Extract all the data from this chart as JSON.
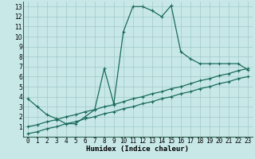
{
  "xlabel": "Humidex (Indice chaleur)",
  "background_color": "#c8e8e8",
  "line_color": "#1a6b5a",
  "xlim": [
    -0.5,
    23.5
  ],
  "ylim": [
    0,
    13.5
  ],
  "xticks": [
    0,
    1,
    2,
    3,
    4,
    5,
    6,
    7,
    8,
    9,
    10,
    11,
    12,
    13,
    14,
    15,
    16,
    17,
    18,
    19,
    20,
    21,
    22,
    23
  ],
  "yticks": [
    1,
    2,
    3,
    4,
    5,
    6,
    7,
    8,
    9,
    10,
    11,
    12,
    13
  ],
  "line1_x": [
    0,
    1,
    2,
    3,
    4,
    5,
    6,
    7,
    8,
    9,
    10,
    11,
    12,
    13,
    14,
    15,
    16,
    17,
    18,
    19,
    20,
    21,
    22,
    23
  ],
  "line1_y": [
    3.8,
    3.0,
    2.2,
    1.8,
    1.3,
    1.3,
    2.0,
    2.7,
    6.8,
    3.3,
    10.5,
    13.0,
    13.0,
    12.6,
    12.0,
    13.1,
    8.5,
    7.8,
    7.3,
    7.3,
    7.3,
    7.3,
    7.3,
    6.7
  ],
  "line2_x": [
    0,
    1,
    2,
    3,
    4,
    5,
    6,
    7,
    8,
    9,
    10,
    11,
    12,
    13,
    14,
    15,
    16,
    17,
    18,
    19,
    20,
    21,
    22,
    23
  ],
  "line2_y": [
    1.0,
    1.2,
    1.5,
    1.7,
    2.0,
    2.2,
    2.5,
    2.7,
    3.0,
    3.2,
    3.5,
    3.8,
    4.0,
    4.3,
    4.5,
    4.8,
    5.0,
    5.3,
    5.6,
    5.8,
    6.1,
    6.3,
    6.6,
    6.8
  ],
  "line3_x": [
    0,
    1,
    2,
    3,
    4,
    5,
    6,
    7,
    8,
    9,
    10,
    11,
    12,
    13,
    14,
    15,
    16,
    17,
    18,
    19,
    20,
    21,
    22,
    23
  ],
  "line3_y": [
    0.3,
    0.5,
    0.8,
    1.0,
    1.3,
    1.5,
    1.8,
    2.0,
    2.3,
    2.5,
    2.8,
    3.0,
    3.3,
    3.5,
    3.8,
    4.0,
    4.3,
    4.5,
    4.8,
    5.0,
    5.3,
    5.5,
    5.8,
    6.0
  ],
  "grid_color": "#a0c8c8",
  "marker": "+",
  "markersize": 3,
  "linewidth": 0.9,
  "label_fontsize": 6.5,
  "tick_fontsize": 5.5
}
